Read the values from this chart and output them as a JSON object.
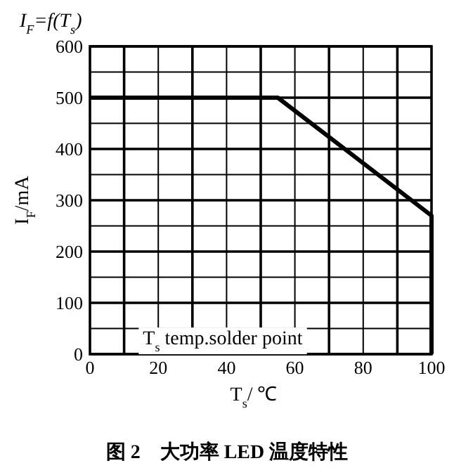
{
  "chart_data": {
    "type": "line",
    "title": "I$_{F}$=f(T$_{s}$)",
    "ylabel": "I$_{F}$/mA",
    "xlabel": "T$_{s}$/ ℃",
    "annotations": [
      "T$_{s}$ temp.solder point",
      "图 2    大功率 LED 温度特性"
    ],
    "x": [
      0,
      55,
      100,
      100
    ],
    "series": [
      {
        "color": "#000000",
        "values": [
          500,
          500,
          270,
          0
        ]
      }
    ],
    "xlim": [
      0,
      100
    ],
    "ylim": [
      0,
      600
    ],
    "xticks": [
      0,
      {
        "value": 10,
        "label": null
      },
      20,
      {
        "value": 30,
        "label": null
      },
      40,
      {
        "value": 50,
        "label": null
      },
      60,
      {
        "value": 70,
        "label": null
      },
      80,
      {
        "value": 90,
        "label": null
      },
      100
    ],
    "yticks": [
      0,
      {
        "value": 50,
        "label": null
      },
      100,
      {
        "value": 150,
        "label": null
      },
      200,
      {
        "value": 250,
        "label": null
      },
      300,
      {
        "value": 350,
        "label": null
      },
      400,
      {
        "value": 450,
        "label": null
      },
      500,
      {
        "value": 550,
        "label": null
      },
      600
    ],
    "grid": true,
    "marker": "none",
    "line_style": "solid"
  }
}
